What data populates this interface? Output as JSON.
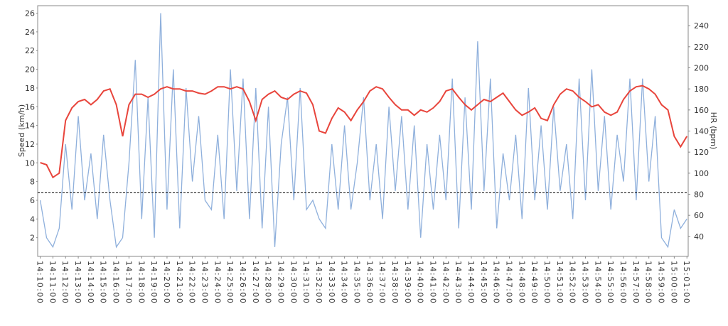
{
  "chart_data": {
    "type": "line",
    "y_label": "Speed (km/h)",
    "y2_label": "HR (bpm)",
    "x": [
      0,
      0.5,
      1,
      1.5,
      2,
      2.5,
      3,
      3.5,
      4,
      4.5,
      5,
      5.5,
      6,
      6.5,
      7,
      7.5,
      8,
      8.5,
      9,
      9.5,
      10,
      10.5,
      11,
      11.5,
      12,
      12.5,
      13,
      13.5,
      14,
      14.5,
      15,
      15.5,
      16,
      16.5,
      17,
      17.5,
      18,
      18.5,
      19,
      19.5,
      20,
      20.5,
      21,
      21.5,
      22,
      22.5,
      23,
      23.5,
      24,
      24.5,
      25,
      25.5,
      26,
      26.5,
      27,
      27.5,
      28,
      28.5,
      29,
      29.5,
      30,
      30.5,
      31,
      31.5,
      32,
      32.5,
      33,
      33.5,
      34,
      34.5,
      35,
      35.5,
      36,
      36.5,
      37,
      37.5,
      38,
      38.5,
      39,
      39.5,
      40,
      40.5,
      41,
      41.5,
      42,
      42.5,
      43,
      43.5,
      44,
      44.5,
      45,
      45.5,
      46,
      46.5,
      47,
      47.5,
      48,
      48.5,
      49,
      49.5,
      50,
      50.5,
      51
    ],
    "series": [
      {
        "name": "Speed",
        "color": "#8fb0dc",
        "axis": "y",
        "values": [
          6,
          2,
          1,
          3,
          12,
          5,
          15,
          6,
          11,
          4,
          13,
          6,
          1,
          2,
          10,
          21,
          4,
          17,
          2,
          26,
          5,
          20,
          3,
          18,
          8,
          15,
          6,
          5,
          13,
          4,
          20,
          7,
          19,
          4,
          18,
          3,
          16,
          1,
          12,
          17,
          6,
          18,
          5,
          6,
          4,
          3,
          12,
          5,
          14,
          5,
          10,
          17,
          6,
          12,
          4,
          16,
          7,
          15,
          5,
          14,
          2,
          12,
          5,
          13,
          6,
          19,
          3,
          17,
          5,
          23,
          7,
          19,
          3,
          11,
          6,
          13,
          4,
          18,
          6,
          14,
          5,
          16,
          7,
          12,
          4,
          19,
          6,
          20,
          7,
          15,
          5,
          13,
          8,
          19,
          6,
          19,
          8,
          15,
          2,
          1,
          5,
          3,
          4
        ]
      },
      {
        "name": "HR",
        "color": "#e8453c",
        "axis": "y2",
        "values": [
          110,
          108,
          96,
          100,
          150,
          162,
          168,
          170,
          165,
          170,
          178,
          180,
          165,
          135,
          165,
          175,
          175,
          172,
          175,
          180,
          182,
          180,
          180,
          178,
          178,
          176,
          175,
          178,
          182,
          182,
          180,
          182,
          180,
          168,
          150,
          170,
          175,
          178,
          172,
          170,
          175,
          178,
          176,
          165,
          140,
          138,
          152,
          162,
          158,
          150,
          160,
          168,
          178,
          182,
          180,
          172,
          165,
          160,
          160,
          155,
          160,
          158,
          162,
          168,
          178,
          180,
          172,
          165,
          160,
          165,
          170,
          168,
          172,
          176,
          168,
          160,
          155,
          158,
          162,
          152,
          150,
          165,
          175,
          180,
          178,
          172,
          168,
          163,
          165,
          158,
          155,
          158,
          170,
          178,
          182,
          183,
          180,
          175,
          165,
          160,
          135,
          125,
          135
        ]
      }
    ],
    "reference_line": 6.8,
    "xlim": [
      -0.2,
      51.1
    ],
    "xticks": [
      {
        "value": 0,
        "label": "14:10:00"
      },
      {
        "value": 1,
        "label": "14:11:00"
      },
      {
        "value": 2,
        "label": "14:12:00"
      },
      {
        "value": 3,
        "label": "14:13:00"
      },
      {
        "value": 4,
        "label": "14:14:00"
      },
      {
        "value": 5,
        "label": "14:15:00"
      },
      {
        "value": 6,
        "label": "14:16:00"
      },
      {
        "value": 7,
        "label": "14:17:00"
      },
      {
        "value": 8,
        "label": "14:18:00"
      },
      {
        "value": 9,
        "label": "14:19:00"
      },
      {
        "value": 10,
        "label": "14:20:00"
      },
      {
        "value": 11,
        "label": "14:21:00"
      },
      {
        "value": 12,
        "label": "14:22:00"
      },
      {
        "value": 13,
        "label": "14:23:00"
      },
      {
        "value": 14,
        "label": "14:24:00"
      },
      {
        "value": 15,
        "label": "14:25:00"
      },
      {
        "value": 16,
        "label": "14:26:00"
      },
      {
        "value": 17,
        "label": "14:27:00"
      },
      {
        "value": 18,
        "label": "14:28:00"
      },
      {
        "value": 19,
        "label": "14:29:00"
      },
      {
        "value": 20,
        "label": "14:30:00"
      },
      {
        "value": 21,
        "label": "14:31:00"
      },
      {
        "value": 22,
        "label": "14:32:00"
      },
      {
        "value": 23,
        "label": "14:33:00"
      },
      {
        "value": 24,
        "label": "14:34:00"
      },
      {
        "value": 25,
        "label": "14:35:00"
      },
      {
        "value": 26,
        "label": "14:36:00"
      },
      {
        "value": 27,
        "label": "14:37:00"
      },
      {
        "value": 28,
        "label": "14:38:00"
      },
      {
        "value": 29,
        "label": "14:39:00"
      },
      {
        "value": 30,
        "label": "14:40:00"
      },
      {
        "value": 31,
        "label": "14:41:00"
      },
      {
        "value": 32,
        "label": "14:42:00"
      },
      {
        "value": 33,
        "label": "14:43:00"
      },
      {
        "value": 34,
        "label": "14:44:00"
      },
      {
        "value": 35,
        "label": "14:45:00"
      },
      {
        "value": 36,
        "label": "14:46:00"
      },
      {
        "value": 37,
        "label": "14:47:00"
      },
      {
        "value": 38,
        "label": "14:48:00"
      },
      {
        "value": 39,
        "label": "14:49:00"
      },
      {
        "value": 40,
        "label": "14:50:00"
      },
      {
        "value": 41,
        "label": "14:51:00"
      },
      {
        "value": 42,
        "label": "14:52:00"
      },
      {
        "value": 43,
        "label": "14:53:00"
      },
      {
        "value": 44,
        "label": "14:54:00"
      },
      {
        "value": 45,
        "label": "14:55:00"
      },
      {
        "value": 46,
        "label": "14:56:00"
      },
      {
        "value": 47,
        "label": "14:57:00"
      },
      {
        "value": 48,
        "label": "14:58:00"
      },
      {
        "value": 49,
        "label": "14:59:00"
      },
      {
        "value": 50,
        "label": "15:00:00"
      },
      {
        "value": 51,
        "label": "15:01:00"
      }
    ],
    "ylim": [
      0,
      26.8
    ],
    "yticks": [
      2,
      4,
      6,
      8,
      10,
      12,
      14,
      16,
      18,
      20,
      22,
      24,
      26
    ],
    "y2lim": [
      21,
      259
    ],
    "y2ticks": [
      40,
      60,
      80,
      100,
      120,
      140,
      160,
      180,
      200,
      220,
      240
    ]
  }
}
